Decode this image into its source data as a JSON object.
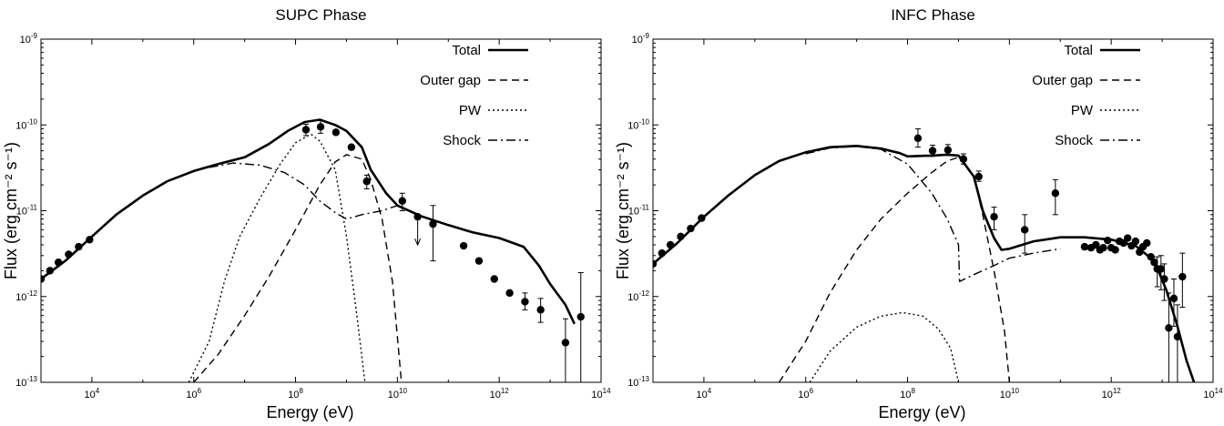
{
  "chart_data": [
    {
      "type": "line",
      "title": "SUPC Phase",
      "xlabel": "Energy (eV)",
      "ylabel": "Flux (erg cm⁻² s⁻¹)",
      "xscale": "log",
      "yscale": "log",
      "xlim": [
        1000,
        100000000000000
      ],
      "ylim": [
        1e-13,
        1e-09
      ],
      "x_tick_exponents": [
        4,
        6,
        8,
        10,
        12,
        14
      ],
      "y_tick_exponents": [
        -13,
        -12,
        -11,
        -10,
        -9
      ],
      "legend_position": "top-right",
      "legend": [
        "Total",
        "Outer gap",
        "PW",
        "Shock"
      ],
      "series": [
        {
          "name": "Total",
          "style": "solid",
          "points": [
            [
              1000.0,
              1.6e-12
            ],
            [
              3000.0,
              2.6e-12
            ],
            [
              10000.0,
              5e-12
            ],
            [
              30000.0,
              9e-12
            ],
            [
              100000.0,
              1.5e-11
            ],
            [
              300000.0,
              2.2e-11
            ],
            [
              1000000.0,
              2.9e-11
            ],
            [
              3000000.0,
              3.5e-11
            ],
            [
              10000000.0,
              4.2e-11
            ],
            [
              30000000.0,
              6e-11
            ],
            [
              70000000.0,
              8.5e-11
            ],
            [
              150000000.0,
              1.08e-10
            ],
            [
              300000000.0,
              1.15e-10
            ],
            [
              600000000.0,
              1e-10
            ],
            [
              1000000000.0,
              8.5e-11
            ],
            [
              2000000000.0,
              5.5e-11
            ],
            [
              3000000000.0,
              3e-11
            ],
            [
              6000000000.0,
              1.6e-11
            ],
            [
              10000000000.0,
              1.15e-11
            ],
            [
              30000000000.0,
              8.6e-12
            ],
            [
              100000000000.0,
              6.8e-12
            ],
            [
              300000000000.0,
              5.6e-12
            ],
            [
              1000000000000.0,
              4.8e-12
            ],
            [
              3000000000000.0,
              3.8e-12
            ],
            [
              6000000000000.0,
              2.3e-12
            ],
            [
              10000000000000.0,
              1.4e-12
            ],
            [
              20000000000000.0,
              8e-13
            ],
            [
              30000000000000.0,
              4.8e-13
            ]
          ]
        },
        {
          "name": "Outer gap",
          "style": "dashed",
          "points": [
            [
              1000000.0,
              1e-13
            ],
            [
              3000000.0,
              2.1e-13
            ],
            [
              10000000.0,
              6e-13
            ],
            [
              30000000.0,
              1.7e-12
            ],
            [
              100000000.0,
              6e-12
            ],
            [
              300000000.0,
              2e-11
            ],
            [
              600000000.0,
              3.7e-11
            ],
            [
              1000000000.0,
              4.5e-11
            ],
            [
              2000000000.0,
              4e-11
            ],
            [
              3000000000.0,
              2.3e-11
            ],
            [
              5000000000.0,
              8e-12
            ],
            [
              8000000000.0,
              1.5e-12
            ],
            [
              12000000000.0,
              1e-13
            ]
          ]
        },
        {
          "name": "PW",
          "style": "dotted",
          "points": [
            [
              800000.0,
              1e-13
            ],
            [
              2000000.0,
              3e-13
            ],
            [
              4000000.0,
              1.5e-12
            ],
            [
              8000000.0,
              5e-12
            ],
            [
              20000000.0,
              1.4e-11
            ],
            [
              50000000.0,
              3.5e-11
            ],
            [
              100000000.0,
              6.2e-11
            ],
            [
              200000000.0,
              7.8e-11
            ],
            [
              300000000.0,
              6.5e-11
            ],
            [
              600000000.0,
              3e-11
            ],
            [
              1000000000.0,
              5e-12
            ],
            [
              1600000000.0,
              6e-13
            ],
            [
              2300000000.0,
              1e-13
            ]
          ]
        },
        {
          "name": "Shock",
          "style": "dashdot",
          "points": [
            [
              2000000.0,
              3.2e-11
            ],
            [
              6000000.0,
              3.6e-11
            ],
            [
              20000000.0,
              3.4e-11
            ],
            [
              60000000.0,
              2.8e-11
            ],
            [
              150000000.0,
              2e-11
            ],
            [
              300000000.0,
              1.3e-11
            ],
            [
              600000000.0,
              9.5e-12
            ],
            [
              1000000000.0,
              8e-12
            ],
            [
              2000000000.0,
              9e-12
            ],
            [
              5000000000.0,
              1e-11
            ],
            [
              10000000000.0,
              1.15e-11
            ]
          ]
        }
      ],
      "data_points": [
        {
          "x": 1000.0,
          "y": 1.6e-12
        },
        {
          "x": 1500.0,
          "y": 2e-12
        },
        {
          "x": 2200.0,
          "y": 2.5e-12
        },
        {
          "x": 3500.0,
          "y": 3.1e-12
        },
        {
          "x": 5500.0,
          "y": 3.8e-12
        },
        {
          "x": 9000.0,
          "y": 4.6e-12
        },
        {
          "x": 160000000.0,
          "y": 8.8e-11,
          "yerr": [
            7.5e-11,
            1.02e-10
          ]
        },
        {
          "x": 310000000.0,
          "y": 9.5e-11,
          "yerr": [
            8e-11,
            1.12e-10
          ]
        },
        {
          "x": 620000000.0,
          "y": 8.2e-11
        },
        {
          "x": 1250000000.0,
          "y": 5.5e-11
        },
        {
          "x": 2500000000.0,
          "y": 2.2e-11,
          "yerr": [
            1.8e-11,
            2.6e-11
          ]
        },
        {
          "x": 12500000000.0,
          "y": 1.3e-11,
          "yerr": [
            1e-11,
            1.6e-11
          ]
        },
        {
          "x": 25000000000.0,
          "y": 8.5e-12,
          "upper_limit": true
        },
        {
          "x": 50000000000.0,
          "y": 7e-12,
          "yerr": [
            2.6e-12,
            1.15e-11
          ]
        },
        {
          "x": 200000000000.0,
          "y": 3.9e-12
        },
        {
          "x": 400000000000.0,
          "y": 2.6e-12
        },
        {
          "x": 800000000000.0,
          "y": 1.6e-12
        },
        {
          "x": 1600000000000.0,
          "y": 1.1e-12
        },
        {
          "x": 3200000000000.0,
          "y": 8.7e-13,
          "yerr": [
            7e-13,
            1.1e-12
          ]
        },
        {
          "x": 6500000000000.0,
          "y": 7e-13,
          "yerr": [
            5e-13,
            9.5e-13
          ]
        },
        {
          "x": 20000000000000.0,
          "y": 2.9e-13,
          "yerr": [
            1e-13,
            5.5e-13
          ]
        },
        {
          "x": 40000000000000.0,
          "y": 5.8e-13,
          "yerr": [
            1e-13,
            1.9e-12
          ]
        }
      ]
    },
    {
      "type": "line",
      "title": "INFC Phase",
      "xlabel": "Energy (eV)",
      "ylabel": "Flux (erg cm⁻² s⁻¹)",
      "xscale": "log",
      "yscale": "log",
      "xlim": [
        1000,
        100000000000000
      ],
      "ylim": [
        1e-13,
        1e-09
      ],
      "x_tick_exponents": [
        4,
        6,
        8,
        10,
        12,
        14
      ],
      "y_tick_exponents": [
        -13,
        -12,
        -11,
        -10,
        -9
      ],
      "legend_position": "top-right",
      "legend": [
        "Total",
        "Outer gap",
        "PW",
        "Shock"
      ],
      "series": [
        {
          "name": "Total",
          "style": "solid",
          "points": [
            [
              1000.0,
              2.4e-12
            ],
            [
              3000.0,
              4.2e-12
            ],
            [
              10000.0,
              8.5e-12
            ],
            [
              30000.0,
              1.5e-11
            ],
            [
              100000.0,
              2.6e-11
            ],
            [
              300000.0,
              3.8e-11
            ],
            [
              1000000.0,
              4.8e-11
            ],
            [
              3000000.0,
              5.5e-11
            ],
            [
              10000000.0,
              5.7e-11
            ],
            [
              30000000.0,
              5.3e-11
            ],
            [
              70000000.0,
              4.7e-11
            ],
            [
              100000000.0,
              4.3e-11
            ],
            [
              300000000.0,
              4.4e-11
            ],
            [
              600000000.0,
              4.5e-11
            ],
            [
              1000000000.0,
              4.4e-11
            ],
            [
              2000000000.0,
              2.5e-11
            ],
            [
              3000000000.0,
              1e-11
            ],
            [
              5000000000.0,
              4.8e-12
            ],
            [
              7000000000.0,
              3.5e-12
            ],
            [
              10000000000.0,
              3.6e-12
            ],
            [
              30000000000.0,
              4.4e-12
            ],
            [
              100000000000.0,
              4.9e-12
            ],
            [
              300000000000.0,
              4.9e-12
            ],
            [
              1000000000000.0,
              4.6e-12
            ],
            [
              3000000000000.0,
              3.9e-12
            ],
            [
              7000000000000.0,
              2.6e-12
            ],
            [
              12000000000000.0,
              1.2e-12
            ],
            [
              20000000000000.0,
              4.5e-13
            ],
            [
              30000000000000.0,
              1.8e-13
            ],
            [
              45000000000000.0,
              9e-14
            ]
          ]
        },
        {
          "name": "Outer gap",
          "style": "dashed",
          "points": [
            [
              300000.0,
              1e-13
            ],
            [
              1000000.0,
              3e-13
            ],
            [
              3000000.0,
              1.1e-12
            ],
            [
              10000000.0,
              3.5e-12
            ],
            [
              30000000.0,
              8e-12
            ],
            [
              100000000.0,
              1.6e-11
            ],
            [
              300000000.0,
              2.8e-11
            ],
            [
              600000000.0,
              3.8e-11
            ],
            [
              1000000000.0,
              4.2e-11
            ],
            [
              2000000000.0,
              2.5e-11
            ],
            [
              3000000000.0,
              9e-12
            ],
            [
              5000000000.0,
              2e-12
            ],
            [
              8000000000.0,
              4e-13
            ],
            [
              10000000000.0,
              1e-13
            ]
          ]
        },
        {
          "name": "PW",
          "style": "dotted",
          "points": [
            [
              1200000.0,
              1e-13
            ],
            [
              3000000.0,
              2.3e-13
            ],
            [
              10000000.0,
              4.4e-13
            ],
            [
              30000000.0,
              5.9e-13
            ],
            [
              80000000.0,
              6.5e-13
            ],
            [
              200000000.0,
              5.9e-13
            ],
            [
              400000000.0,
              4.2e-13
            ],
            [
              700000000.0,
              2.5e-13
            ],
            [
              1000000000.0,
              1e-13
            ]
          ]
        },
        {
          "name": "Shock",
          "style": "dashdot",
          "points": [
            [
              1000000.0,
              4.6e-11
            ],
            [
              3000000.0,
              5.4e-11
            ],
            [
              10000000.0,
              5.6e-11
            ],
            [
              30000000.0,
              5.2e-11
            ],
            [
              100000000.0,
              3.5e-11
            ],
            [
              300000000.0,
              1.6e-11
            ],
            [
              600000000.0,
              8e-12
            ],
            [
              1000000000.0,
              4e-12
            ],
            [
              1050000000.0,
              1.5e-12
            ],
            [
              2000000000.0,
              1.8e-12
            ],
            [
              5000000000.0,
              2.3e-12
            ],
            [
              10000000000.0,
              2.8e-12
            ],
            [
              30000000000.0,
              3.2e-12
            ],
            [
              100000000000.0,
              3.6e-12
            ]
          ]
        }
      ],
      "data_points": [
        {
          "x": 1000.0,
          "y": 2.4e-12
        },
        {
          "x": 1500.0,
          "y": 3.2e-12
        },
        {
          "x": 2200.0,
          "y": 4e-12
        },
        {
          "x": 3500.0,
          "y": 5e-12
        },
        {
          "x": 5500.0,
          "y": 6.2e-12
        },
        {
          "x": 9000.0,
          "y": 8.2e-12
        },
        {
          "x": 160000000.0,
          "y": 7e-11,
          "yerr": [
            5.5e-11,
            9e-11
          ]
        },
        {
          "x": 310000000.0,
          "y": 5e-11,
          "yerr": [
            4.3e-11,
            5.8e-11
          ]
        },
        {
          "x": 620000000.0,
          "y": 5.1e-11,
          "yerr": [
            4.4e-11,
            5.9e-11
          ]
        },
        {
          "x": 1250000000.0,
          "y": 4e-11,
          "yerr": [
            3.5e-11,
            4.6e-11
          ]
        },
        {
          "x": 2500000000.0,
          "y": 2.5e-11,
          "yerr": [
            2.2e-11,
            2.9e-11
          ]
        },
        {
          "x": 5000000000.0,
          "y": 8.5e-12,
          "yerr": [
            6e-12,
            1.1e-11
          ]
        },
        {
          "x": 20000000000.0,
          "y": 6e-12,
          "yerr": [
            3.2e-12,
            9e-12
          ]
        },
        {
          "x": 80000000000.0,
          "y": 1.6e-11,
          "yerr": [
            9e-12,
            2.3e-11
          ]
        },
        {
          "x": 300000000000.0,
          "y": 3.8e-12
        },
        {
          "x": 400000000000.0,
          "y": 3.7e-12
        },
        {
          "x": 500000000000.0,
          "y": 4e-12
        },
        {
          "x": 600000000000.0,
          "y": 3.5e-12
        },
        {
          "x": 700000000000.0,
          "y": 3.7e-12
        },
        {
          "x": 850000000000.0,
          "y": 4.5e-12
        },
        {
          "x": 1000000000000.0,
          "y": 3.7e-12
        },
        {
          "x": 1200000000000.0,
          "y": 3.5e-12
        },
        {
          "x": 1450000000000.0,
          "y": 4.4e-12
        },
        {
          "x": 1750000000000.0,
          "y": 4.2e-12
        },
        {
          "x": 2100000000000.0,
          "y": 4.8e-12
        },
        {
          "x": 2500000000000.0,
          "y": 3.9e-12
        },
        {
          "x": 3000000000000.0,
          "y": 4.4e-12
        },
        {
          "x": 3600000000000.0,
          "y": 3.3e-12
        },
        {
          "x": 4200000000000.0,
          "y": 3.8e-12
        },
        {
          "x": 5000000000000.0,
          "y": 4.2e-12
        },
        {
          "x": 6000000000000.0,
          "y": 2.9e-12
        },
        {
          "x": 7000000000000.0,
          "y": 2.5e-12
        },
        {
          "x": 8000000000000.0,
          "y": 2.1e-12,
          "yerr": [
            1.3e-12,
            2.9e-12
          ]
        },
        {
          "x": 9500000000000.0,
          "y": 2.1e-12,
          "yerr": [
            1.2e-12,
            3e-12
          ]
        },
        {
          "x": 11000000000000.0,
          "y": 1.6e-12,
          "yerr": [
            9e-13,
            2.4e-12
          ]
        },
        {
          "x": 13500000000000.0,
          "y": 4.3e-13,
          "yerr": [
            1e-13,
            1.1e-12
          ]
        },
        {
          "x": 17000000000000.0,
          "y": 9.5e-13,
          "yerr": [
            4.5e-13,
            1.6e-12
          ]
        },
        {
          "x": 20000000000000.0,
          "y": 3.4e-13,
          "yerr": [
            1e-13,
            8e-13
          ]
        },
        {
          "x": 25000000000000.0,
          "y": 1.7e-12,
          "yerr": [
            7.5e-13,
            3.2e-12
          ]
        }
      ]
    }
  ]
}
